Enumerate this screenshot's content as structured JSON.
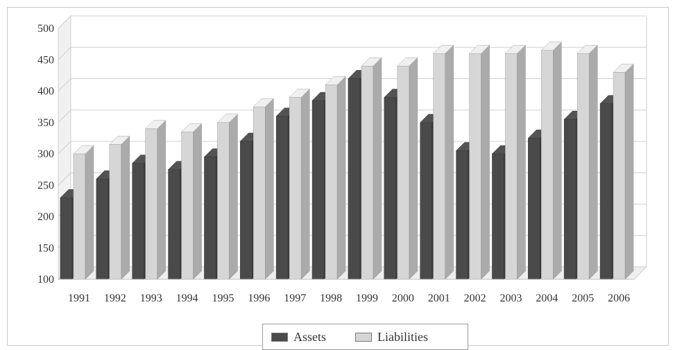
{
  "chart_data": {
    "type": "bar",
    "title": "",
    "xlabel": "",
    "ylabel": "",
    "categories": [
      "1991",
      "1992",
      "1993",
      "1994",
      "1995",
      "1996",
      "1997",
      "1998",
      "1999",
      "2000",
      "2001",
      "2002",
      "2003",
      "2004",
      "2005",
      "2006"
    ],
    "series": [
      {
        "name": "Assets",
        "color": "#4a4a4a",
        "values": [
          230,
          260,
          285,
          275,
          295,
          320,
          360,
          385,
          420,
          390,
          350,
          305,
          300,
          325,
          355,
          380
        ]
      },
      {
        "name": "Liabilities",
        "color": "#d6d6d6",
        "values": [
          300,
          315,
          340,
          335,
          350,
          375,
          390,
          410,
          440,
          440,
          460,
          460,
          460,
          465,
          460,
          430
        ]
      }
    ],
    "yticks": [
      "100",
      "150",
      "200",
      "250",
      "300",
      "350",
      "400",
      "450",
      "500"
    ],
    "ylim": [
      100,
      500
    ],
    "grid": true,
    "legend_position": "bottom-center",
    "style": "3d"
  }
}
